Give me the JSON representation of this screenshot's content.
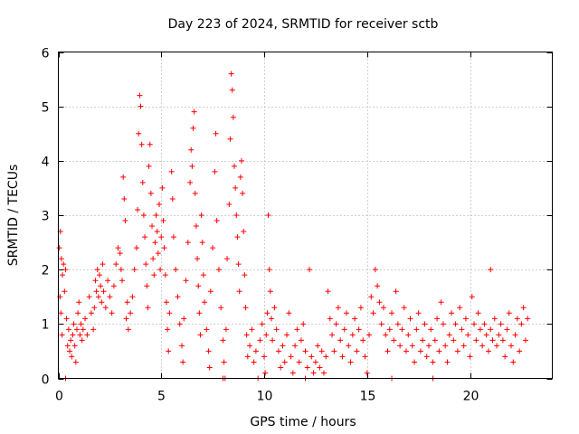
{
  "chart_data": {
    "type": "scatter",
    "title": "Day 223 of 2024, SRMTID for receiver sctb",
    "xlabel": "GPS time / hours",
    "ylabel": "SRMTID / TECUs",
    "xlim": [
      0,
      24
    ],
    "ylim": [
      0,
      6
    ],
    "xticks": [
      0,
      5,
      10,
      15,
      20
    ],
    "yticks": [
      0,
      1,
      2,
      3,
      4,
      5,
      6
    ],
    "grid": true,
    "marker": "+",
    "color": "#ff0000",
    "series": [
      {
        "name": "SRMTID",
        "points": [
          [
            0.05,
            2.4
          ],
          [
            0.1,
            2.7
          ],
          [
            0.15,
            2.2
          ],
          [
            0.2,
            1.9
          ],
          [
            0.25,
            2.1
          ],
          [
            0.3,
            1.6
          ],
          [
            0.12,
            1.2
          ],
          [
            0.18,
            0.8
          ],
          [
            0.08,
            1.5
          ],
          [
            0.35,
            2.0
          ],
          [
            0.4,
            1.1
          ],
          [
            0.45,
            0.6
          ],
          [
            0.5,
            0.9
          ],
          [
            0.55,
            0.5
          ],
          [
            0.6,
            0.7
          ],
          [
            0.65,
            0.4
          ],
          [
            0.7,
            0.8
          ],
          [
            0.75,
            1.0
          ],
          [
            0.8,
            0.6
          ],
          [
            0.85,
            0.3
          ],
          [
            0.9,
            0.9
          ],
          [
            0.95,
            1.2
          ],
          [
            1.0,
            1.4
          ],
          [
            1.05,
            0.8
          ],
          [
            1.1,
            1.0
          ],
          [
            1.15,
            0.7
          ],
          [
            1.2,
            0.9
          ],
          [
            1.3,
            1.1
          ],
          [
            1.4,
            0.8
          ],
          [
            1.5,
            1.5
          ],
          [
            1.6,
            1.2
          ],
          [
            1.7,
            0.9
          ],
          [
            1.75,
            1.3
          ],
          [
            1.8,
            1.8
          ],
          [
            1.85,
            1.6
          ],
          [
            1.9,
            2.0
          ],
          [
            1.95,
            1.5
          ],
          [
            2.0,
            1.9
          ],
          [
            2.05,
            1.7
          ],
          [
            2.1,
            1.4
          ],
          [
            2.15,
            2.1
          ],
          [
            2.2,
            1.6
          ],
          [
            2.3,
            1.3
          ],
          [
            2.4,
            1.8
          ],
          [
            2.5,
            1.5
          ],
          [
            2.6,
            1.2
          ],
          [
            2.7,
            1.7
          ],
          [
            2.8,
            2.1
          ],
          [
            2.9,
            2.4
          ],
          [
            3.0,
            2.3
          ],
          [
            3.05,
            2.0
          ],
          [
            3.1,
            1.8
          ],
          [
            3.15,
            3.7
          ],
          [
            3.2,
            3.3
          ],
          [
            3.25,
            2.9
          ],
          [
            3.3,
            1.1
          ],
          [
            3.35,
            1.4
          ],
          [
            3.4,
            0.9
          ],
          [
            3.5,
            1.2
          ],
          [
            3.6,
            1.5
          ],
          [
            3.7,
            2.0
          ],
          [
            3.8,
            2.4
          ],
          [
            3.85,
            3.1
          ],
          [
            3.9,
            4.5
          ],
          [
            3.95,
            5.2
          ],
          [
            4.0,
            5.0
          ],
          [
            4.05,
            4.3
          ],
          [
            4.1,
            3.6
          ],
          [
            4.15,
            3.0
          ],
          [
            4.2,
            2.6
          ],
          [
            4.25,
            2.1
          ],
          [
            4.3,
            1.7
          ],
          [
            4.35,
            1.3
          ],
          [
            4.4,
            3.9
          ],
          [
            4.45,
            4.3
          ],
          [
            4.5,
            3.4
          ],
          [
            4.55,
            2.8
          ],
          [
            4.6,
            2.2
          ],
          [
            4.65,
            1.9
          ],
          [
            4.7,
            2.5
          ],
          [
            4.75,
            3.0
          ],
          [
            4.8,
            2.7
          ],
          [
            4.85,
            2.3
          ],
          [
            4.9,
            3.2
          ],
          [
            4.95,
            2.0
          ],
          [
            5.0,
            2.6
          ],
          [
            5.05,
            3.5
          ],
          [
            5.1,
            2.9
          ],
          [
            5.15,
            2.4
          ],
          [
            5.2,
            1.9
          ],
          [
            5.25,
            1.4
          ],
          [
            5.3,
            0.9
          ],
          [
            5.35,
            0.5
          ],
          [
            5.4,
            1.2
          ],
          [
            5.5,
            3.8
          ],
          [
            5.55,
            3.3
          ],
          [
            5.6,
            2.6
          ],
          [
            5.7,
            2.0
          ],
          [
            5.8,
            1.5
          ],
          [
            5.9,
            1.0
          ],
          [
            6.0,
            0.6
          ],
          [
            6.05,
            0.3
          ],
          [
            6.1,
            1.1
          ],
          [
            6.2,
            1.8
          ],
          [
            6.3,
            2.5
          ],
          [
            6.4,
            3.6
          ],
          [
            6.45,
            4.2
          ],
          [
            6.5,
            3.9
          ],
          [
            6.55,
            4.6
          ],
          [
            6.6,
            4.9
          ],
          [
            6.65,
            3.4
          ],
          [
            6.7,
            2.8
          ],
          [
            6.75,
            2.2
          ],
          [
            6.8,
            1.7
          ],
          [
            6.85,
            1.2
          ],
          [
            6.9,
            0.8
          ],
          [
            6.95,
            3.0
          ],
          [
            7.0,
            2.5
          ],
          [
            7.05,
            1.9
          ],
          [
            7.1,
            1.4
          ],
          [
            7.2,
            0.9
          ],
          [
            7.3,
            0.5
          ],
          [
            7.35,
            0.2
          ],
          [
            7.4,
            1.6
          ],
          [
            7.5,
            2.4
          ],
          [
            7.6,
            3.8
          ],
          [
            7.65,
            4.5
          ],
          [
            7.7,
            2.9
          ],
          [
            7.8,
            2.0
          ],
          [
            7.9,
            1.3
          ],
          [
            8.0,
            0.7
          ],
          [
            8.05,
            0.3
          ],
          [
            8.1,
            0.0
          ],
          [
            8.15,
            0.9
          ],
          [
            8.2,
            2.2
          ],
          [
            8.3,
            3.2
          ],
          [
            8.35,
            4.4
          ],
          [
            8.4,
            5.6
          ],
          [
            8.45,
            5.3
          ],
          [
            8.5,
            4.8
          ],
          [
            8.55,
            3.9
          ],
          [
            8.6,
            3.5
          ],
          [
            8.65,
            3.0
          ],
          [
            8.7,
            2.6
          ],
          [
            8.75,
            2.1
          ],
          [
            8.8,
            1.6
          ],
          [
            8.85,
            3.7
          ],
          [
            8.9,
            4.0
          ],
          [
            8.95,
            3.4
          ],
          [
            9.0,
            2.7
          ],
          [
            9.05,
            1.9
          ],
          [
            9.1,
            1.3
          ],
          [
            9.15,
            0.8
          ],
          [
            9.2,
            0.4
          ],
          [
            9.3,
            0.6
          ],
          [
            9.4,
            0.9
          ],
          [
            9.5,
            0.3
          ],
          [
            9.6,
            0.5
          ],
          [
            9.7,
            0.0
          ],
          [
            9.8,
            0.7
          ],
          [
            9.9,
            1.0
          ],
          [
            10.0,
            0.4
          ],
          [
            10.05,
            0.1
          ],
          [
            10.1,
            0.8
          ],
          [
            10.15,
            1.2
          ],
          [
            10.2,
            3.0
          ],
          [
            10.25,
            2.0
          ],
          [
            10.3,
            1.6
          ],
          [
            10.35,
            1.1
          ],
          [
            10.4,
            0.7
          ],
          [
            10.5,
            1.3
          ],
          [
            10.6,
            0.9
          ],
          [
            10.7,
            0.5
          ],
          [
            10.8,
            0.2
          ],
          [
            10.9,
            0.6
          ],
          [
            11.0,
            0.3
          ],
          [
            11.1,
            0.8
          ],
          [
            11.2,
            1.2
          ],
          [
            11.3,
            0.4
          ],
          [
            11.4,
            0.1
          ],
          [
            11.5,
            0.6
          ],
          [
            11.6,
            0.9
          ],
          [
            11.7,
            0.3
          ],
          [
            11.8,
            0.7
          ],
          [
            11.9,
            1.0
          ],
          [
            12.0,
            0.5
          ],
          [
            12.1,
            0.2
          ],
          [
            12.2,
            2.0
          ],
          [
            12.3,
            0.4
          ],
          [
            12.4,
            0.1
          ],
          [
            12.5,
            0.3
          ],
          [
            12.6,
            0.6
          ],
          [
            12.7,
            0.2
          ],
          [
            12.8,
            0.5
          ],
          [
            12.9,
            0.1
          ],
          [
            13.0,
            0.4
          ],
          [
            13.1,
            1.6
          ],
          [
            13.2,
            1.1
          ],
          [
            13.3,
            0.8
          ],
          [
            13.4,
            0.5
          ],
          [
            13.5,
            1.0
          ],
          [
            13.6,
            1.3
          ],
          [
            13.7,
            0.7
          ],
          [
            13.8,
            0.4
          ],
          [
            13.9,
            0.9
          ],
          [
            14.0,
            1.2
          ],
          [
            14.1,
            0.6
          ],
          [
            14.2,
            0.3
          ],
          [
            14.3,
            0.8
          ],
          [
            14.4,
            1.1
          ],
          [
            14.5,
            0.5
          ],
          [
            14.6,
            0.9
          ],
          [
            14.7,
            1.3
          ],
          [
            14.8,
            0.7
          ],
          [
            14.9,
            0.4
          ],
          [
            15.0,
            0.1
          ],
          [
            15.1,
            0.8
          ],
          [
            15.2,
            1.5
          ],
          [
            15.3,
            1.2
          ],
          [
            15.4,
            2.0
          ],
          [
            15.5,
            1.7
          ],
          [
            15.6,
            1.4
          ],
          [
            15.7,
            1.0
          ],
          [
            15.8,
            1.3
          ],
          [
            15.9,
            0.8
          ],
          [
            16.0,
            0.5
          ],
          [
            16.1,
            0.9
          ],
          [
            16.2,
            1.2
          ],
          [
            16.3,
            0.7
          ],
          [
            16.4,
            1.6
          ],
          [
            16.5,
            1.0
          ],
          [
            16.6,
            0.6
          ],
          [
            16.7,
            0.9
          ],
          [
            16.8,
            1.3
          ],
          [
            16.9,
            0.5
          ],
          [
            17.0,
            0.8
          ],
          [
            17.1,
            1.1
          ],
          [
            17.2,
            0.6
          ],
          [
            17.3,
            0.3
          ],
          [
            17.4,
            0.9
          ],
          [
            17.5,
            1.2
          ],
          [
            17.6,
            0.5
          ],
          [
            17.7,
            0.7
          ],
          [
            17.8,
            1.0
          ],
          [
            17.9,
            0.4
          ],
          [
            18.0,
            0.6
          ],
          [
            18.1,
            0.9
          ],
          [
            18.2,
            0.3
          ],
          [
            18.3,
            0.7
          ],
          [
            18.4,
            1.1
          ],
          [
            18.5,
            0.5
          ],
          [
            18.6,
            1.4
          ],
          [
            18.7,
            1.0
          ],
          [
            18.8,
            0.6
          ],
          [
            18.9,
            0.3
          ],
          [
            19.0,
            0.8
          ],
          [
            19.1,
            1.2
          ],
          [
            19.2,
            0.7
          ],
          [
            19.3,
            1.0
          ],
          [
            19.4,
            0.5
          ],
          [
            19.5,
            1.3
          ],
          [
            19.6,
            0.9
          ],
          [
            19.7,
            0.6
          ],
          [
            19.8,
            1.1
          ],
          [
            19.9,
            0.8
          ],
          [
            20.0,
            0.4
          ],
          [
            20.1,
            1.5
          ],
          [
            20.2,
            1.0
          ],
          [
            20.3,
            0.7
          ],
          [
            20.4,
            1.2
          ],
          [
            20.5,
            0.9
          ],
          [
            20.6,
            0.6
          ],
          [
            20.7,
            1.0
          ],
          [
            20.8,
            0.8
          ],
          [
            20.9,
            0.5
          ],
          [
            21.0,
            0.9
          ],
          [
            21.1,
            0.7
          ],
          [
            21.2,
            1.1
          ],
          [
            21.3,
            0.6
          ],
          [
            21.4,
            0.8
          ],
          [
            21.5,
            1.0
          ],
          [
            21.6,
            0.7
          ],
          [
            21.7,
            0.4
          ],
          [
            21.8,
            0.9
          ],
          [
            21.9,
            1.2
          ],
          [
            22.0,
            0.6
          ],
          [
            22.1,
            0.3
          ],
          [
            22.2,
            0.8
          ],
          [
            22.3,
            1.1
          ],
          [
            22.4,
            0.5
          ],
          [
            22.5,
            1.0
          ],
          [
            22.6,
            1.3
          ],
          [
            22.7,
            0.7
          ],
          [
            22.8,
            1.1
          ],
          [
            21.0,
            2.0
          ],
          [
            8.0,
            0.0
          ],
          [
            12.0,
            0.0
          ],
          [
            16.2,
            0.0
          ],
          [
            18.2,
            0.0
          ],
          [
            0.35,
            0.0
          ]
        ]
      }
    ]
  }
}
